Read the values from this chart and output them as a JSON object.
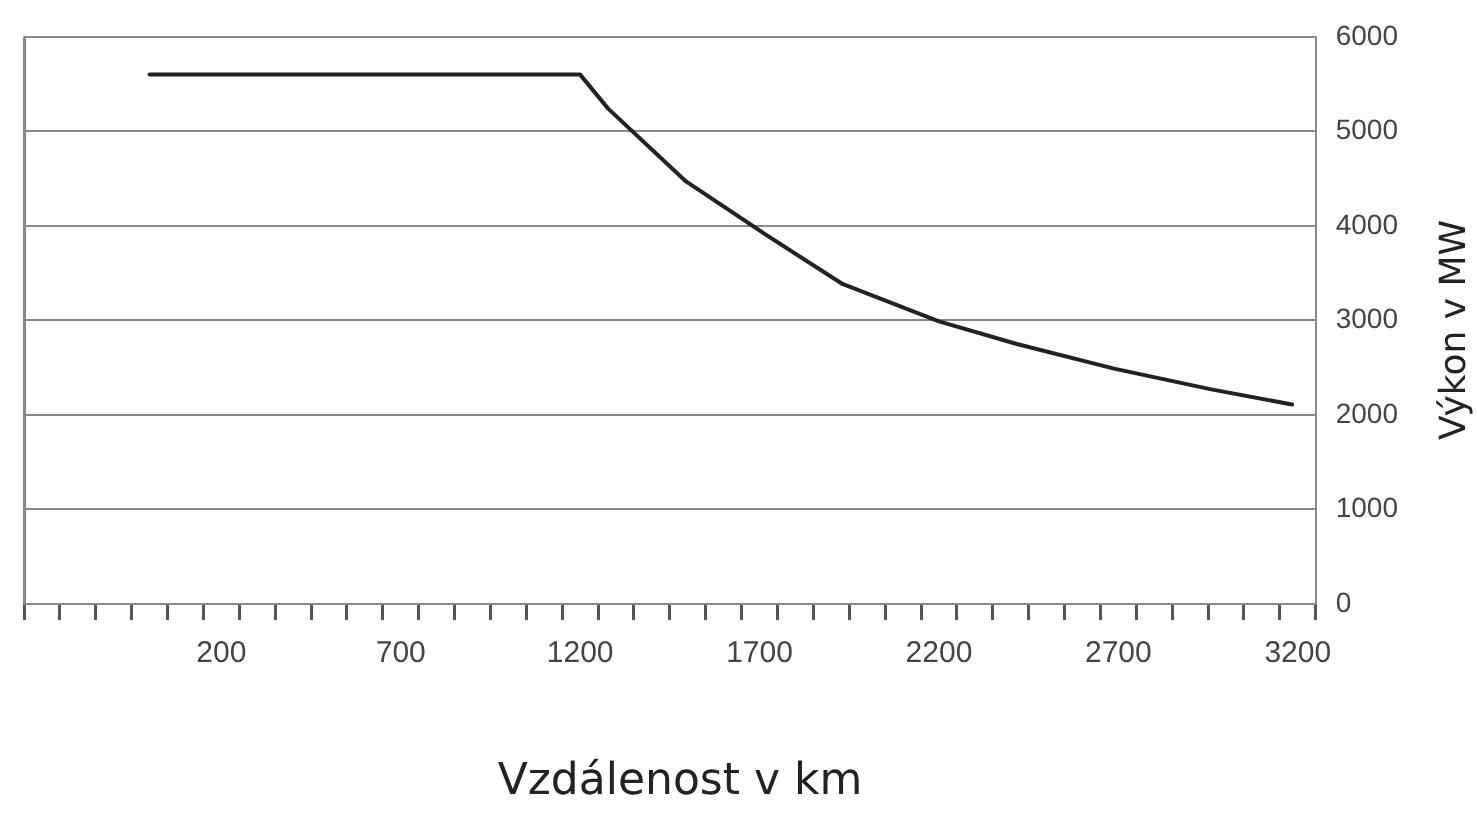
{
  "chart_data": {
    "type": "line",
    "xlabel": "Vzdálenost v km",
    "ylabel": "Výkon v MW",
    "x": [
      0,
      1200,
      1278,
      1495,
      1712,
      1929,
      2200,
      2417,
      2688,
      2959,
      3184
    ],
    "series": [
      {
        "color": "#222222",
        "values": [
          5600,
          5600,
          5240,
          4470,
          3920,
          3390,
          2990,
          2750,
          2490,
          2270,
          2110
        ]
      }
    ],
    "xlim": [
      -350,
      3250
    ],
    "xticks": [
      {
        "value": -350,
        "label": null
      },
      {
        "value": -250,
        "label": null
      },
      {
        "value": -150,
        "label": null
      },
      {
        "value": -50,
        "label": null
      },
      {
        "value": 50,
        "label": null
      },
      {
        "value": 150,
        "label": null
      },
      200,
      {
        "value": 250,
        "label": null
      },
      {
        "value": 350,
        "label": null
      },
      {
        "value": 450,
        "label": null
      },
      {
        "value": 550,
        "label": null
      },
      {
        "value": 650,
        "label": null
      },
      700,
      {
        "value": 750,
        "label": null
      },
      {
        "value": 850,
        "label": null
      },
      {
        "value": 950,
        "label": null
      },
      {
        "value": 1050,
        "label": null
      },
      {
        "value": 1150,
        "label": null
      },
      1200,
      {
        "value": 1250,
        "label": null
      },
      {
        "value": 1350,
        "label": null
      },
      {
        "value": 1450,
        "label": null
      },
      {
        "value": 1550,
        "label": null
      },
      {
        "value": 1650,
        "label": null
      },
      1700,
      {
        "value": 1750,
        "label": null
      },
      {
        "value": 1850,
        "label": null
      },
      {
        "value": 1950,
        "label": null
      },
      {
        "value": 2050,
        "label": null
      },
      {
        "value": 2150,
        "label": null
      },
      2200,
      {
        "value": 2250,
        "label": null
      },
      {
        "value": 2350,
        "label": null
      },
      {
        "value": 2450,
        "label": null
      },
      {
        "value": 2550,
        "label": null
      },
      {
        "value": 2650,
        "label": null
      },
      2700,
      {
        "value": 2750,
        "label": null
      },
      {
        "value": 2850,
        "label": null
      },
      {
        "value": 2950,
        "label": null
      },
      {
        "value": 3050,
        "label": null
      },
      {
        "value": 3150,
        "label": null
      },
      3200,
      {
        "value": 3250,
        "label": null
      }
    ],
    "ylim": [
      0,
      6000
    ],
    "yticks": [
      0,
      1000,
      2000,
      3000,
      4000,
      5000,
      6000
    ],
    "grid": "y",
    "legend": false,
    "marker": "none",
    "line_style": "solid"
  }
}
